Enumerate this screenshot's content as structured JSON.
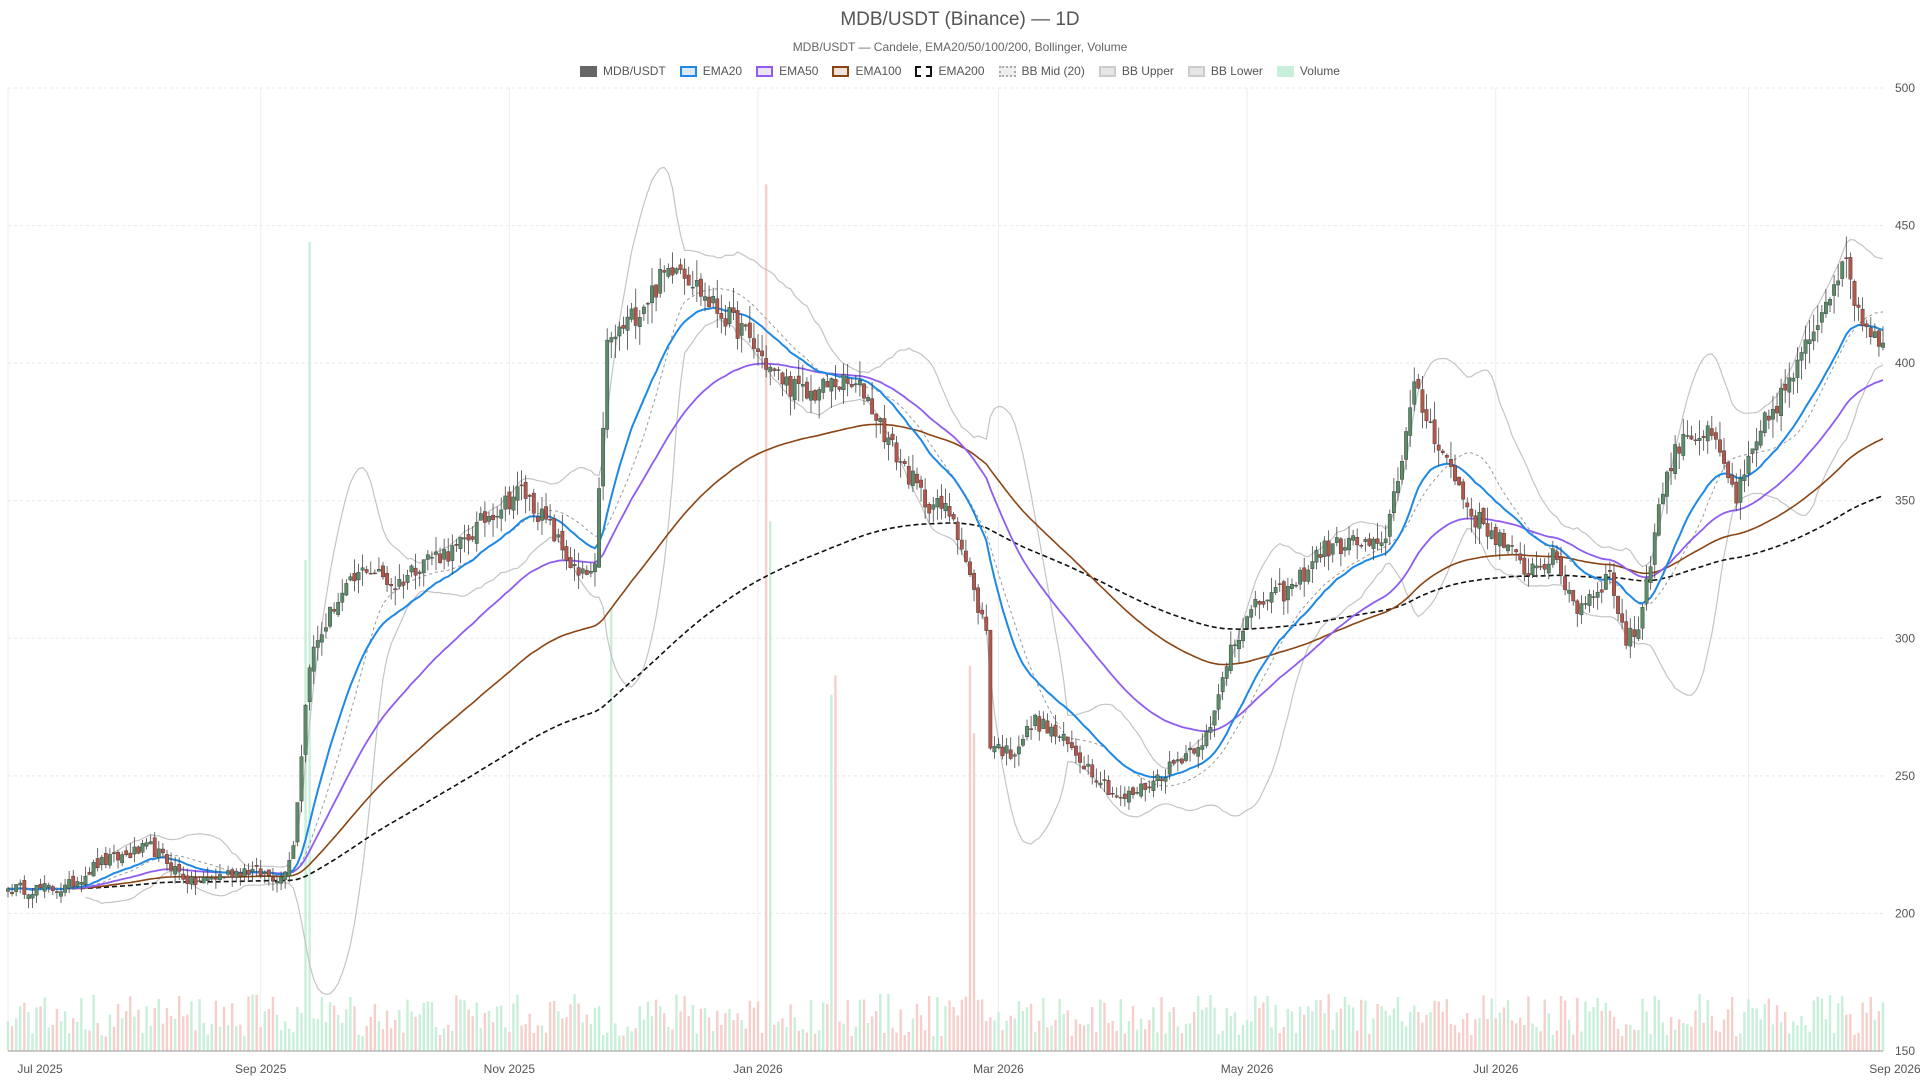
{
  "chart_data": {
    "type": "candlestick",
    "title": "MDB/USDT (Binance) — 1D",
    "subtitle": "MDB/USDT — Candele, EMA20/50/100/200, Bollinger, Volume",
    "legend": [
      {
        "name": "MDB/USDT",
        "color": "#666666",
        "fill": "#666666",
        "style": "solid"
      },
      {
        "name": "EMA20",
        "color": "#1e88e5",
        "fill": "#dbe9f7",
        "style": "solid"
      },
      {
        "name": "EMA50",
        "color": "#8e5cf0",
        "fill": "#ece4fb",
        "style": "solid"
      },
      {
        "name": "EMA100",
        "color": "#8b4513",
        "fill": "#efe2d8",
        "style": "solid"
      },
      {
        "name": "EMA200",
        "color": "#111111",
        "fill": "#ffffff",
        "style": "dashed"
      },
      {
        "name": "BB Mid (20)",
        "color": "#aaaaaa",
        "fill": "#eeeeee",
        "style": "dotted"
      },
      {
        "name": "BB Upper",
        "color": "#cccccc",
        "fill": "#e6e6e6",
        "style": "solid"
      },
      {
        "name": "BB Lower",
        "color": "#cccccc",
        "fill": "#e6e6e6",
        "style": "solid"
      },
      {
        "name": "Volume",
        "color": "#c8efd9",
        "fill": "#c8efd9",
        "style": "solid"
      }
    ],
    "x_labels": [
      "Jul 2025",
      "Sep 2025",
      "Nov 2025",
      "Jan 2026",
      "Mar 2026",
      "May 2026",
      "Jul 2026",
      "Sep 2026"
    ],
    "y_ticks": [
      150,
      200,
      250,
      300,
      350,
      400,
      450,
      500
    ],
    "ylim": [
      150,
      500
    ],
    "y_axis_position": "right",
    "grid": true,
    "legend_position": "top-center",
    "colors": {
      "up": "#5b8c6a",
      "down": "#b5564a",
      "vol_up": "#c8efd9",
      "vol_down": "#f6cfcb"
    },
    "anchors": [
      [
        0,
        209
      ],
      [
        14,
        209
      ],
      [
        22,
        218
      ],
      [
        35,
        224
      ],
      [
        45,
        211
      ],
      [
        58,
        216
      ],
      [
        67,
        213
      ],
      [
        70,
        225
      ],
      [
        74,
        292
      ],
      [
        80,
        312
      ],
      [
        88,
        326
      ],
      [
        95,
        319
      ],
      [
        102,
        329
      ],
      [
        110,
        332
      ],
      [
        118,
        345
      ],
      [
        126,
        354
      ],
      [
        133,
        340
      ],
      [
        140,
        322
      ],
      [
        144,
        324
      ],
      [
        147,
        406
      ],
      [
        155,
        420
      ],
      [
        164,
        438
      ],
      [
        172,
        422
      ],
      [
        180,
        412
      ],
      [
        188,
        396
      ],
      [
        196,
        388
      ],
      [
        203,
        393
      ],
      [
        210,
        390
      ],
      [
        217,
        369
      ],
      [
        225,
        350
      ],
      [
        232,
        345
      ],
      [
        237,
        316
      ],
      [
        240,
        303
      ],
      [
        241,
        262
      ],
      [
        246,
        258
      ],
      [
        252,
        270
      ],
      [
        258,
        264
      ],
      [
        266,
        252
      ],
      [
        273,
        241
      ],
      [
        281,
        248
      ],
      [
        288,
        257
      ],
      [
        295,
        266
      ],
      [
        300,
        298
      ],
      [
        307,
        313
      ],
      [
        315,
        318
      ],
      [
        322,
        332
      ],
      [
        330,
        335
      ],
      [
        337,
        332
      ],
      [
        340,
        352
      ],
      [
        345,
        390
      ],
      [
        352,
        368
      ],
      [
        359,
        345
      ],
      [
        366,
        336
      ],
      [
        372,
        325
      ],
      [
        379,
        329
      ],
      [
        385,
        311
      ],
      [
        393,
        323
      ],
      [
        397,
        299
      ],
      [
        400,
        304
      ],
      [
        406,
        355
      ],
      [
        411,
        375
      ],
      [
        418,
        373
      ],
      [
        424,
        351
      ],
      [
        431,
        378
      ],
      [
        439,
        398
      ],
      [
        445,
        420
      ],
      [
        450,
        438
      ],
      [
        455,
        416
      ],
      [
        460,
        408
      ]
    ],
    "volume_spikes": [
      [
        74,
        0.84
      ],
      [
        73,
        0.51
      ],
      [
        148,
        0.46
      ],
      [
        186,
        0.9
      ],
      [
        187,
        0.55
      ],
      [
        202,
        0.37
      ],
      [
        203,
        0.39
      ],
      [
        236,
        0.4
      ],
      [
        237,
        0.33
      ]
    ]
  }
}
